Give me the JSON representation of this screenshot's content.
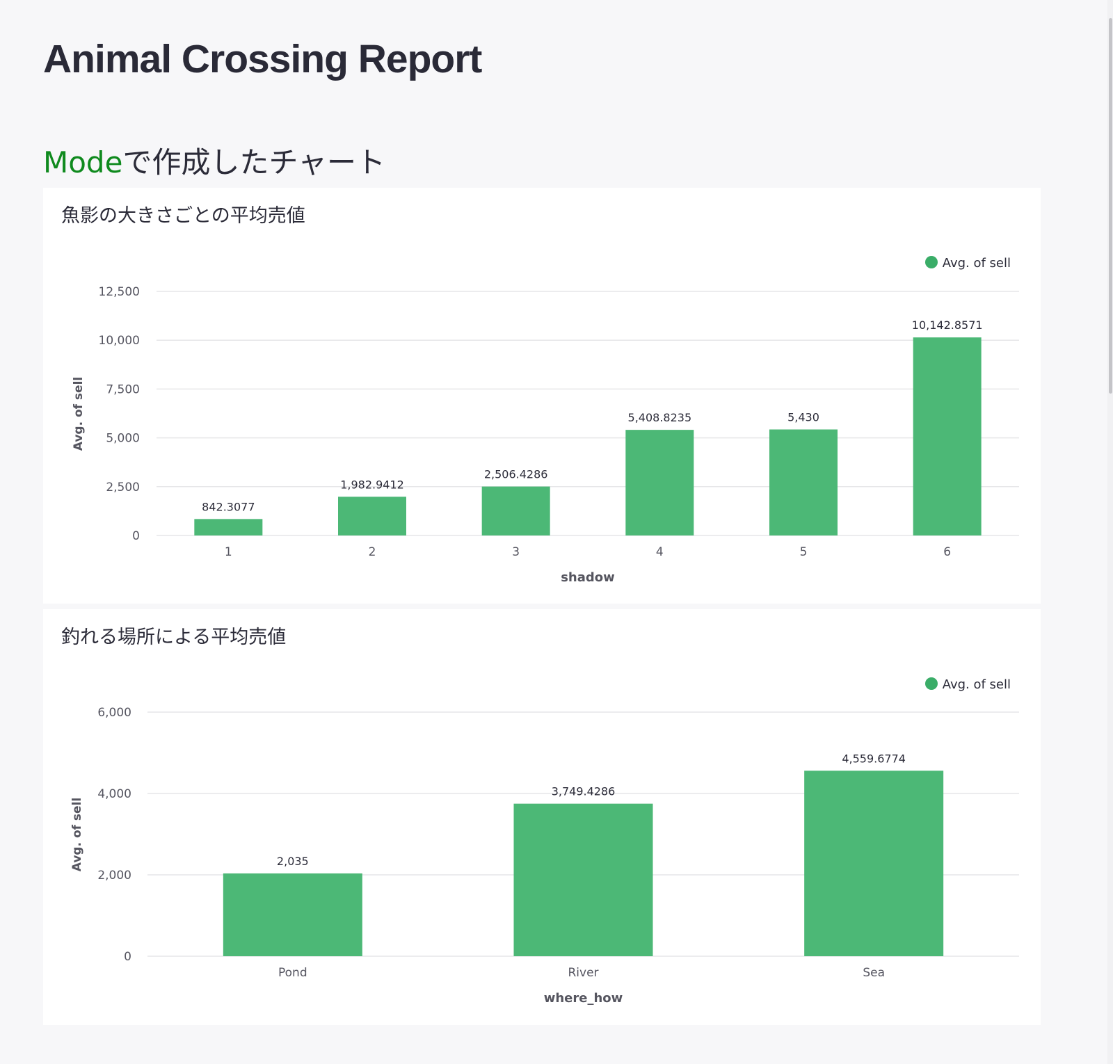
{
  "report": {
    "title": "Animal Crossing Report"
  },
  "section": {
    "heading_accent": "Mode",
    "heading_rest": "で作成したチャート"
  },
  "colors": {
    "bar": "#4cb876",
    "legend_dot": "#3aad68",
    "accent": "#0f8a1e"
  },
  "charts": [
    {
      "title": "魚影の大きさごとの平均売値"
    },
    {
      "title": "釣れる場所による平均売値"
    }
  ],
  "chart_data": [
    {
      "type": "bar",
      "title": "魚影の大きさごとの平均売値",
      "xlabel": "shadow",
      "ylabel": "Avg. of sell",
      "categories": [
        "1",
        "2",
        "3",
        "4",
        "5",
        "6"
      ],
      "series": [
        {
          "name": "Avg. of sell",
          "values": [
            842.3077,
            1982.9412,
            2506.4286,
            5408.8235,
            5430,
            10142.8571
          ],
          "labels": [
            "842.3077",
            "1,982.9412",
            "2,506.4286",
            "5,408.8235",
            "5,430",
            "10,142.8571"
          ]
        }
      ],
      "ylim": [
        0,
        12500
      ],
      "yticks": [
        0,
        2500,
        5000,
        7500,
        10000,
        12500
      ],
      "ytick_labels": [
        "0",
        "2,500",
        "5,000",
        "7,500",
        "10,000",
        "12,500"
      ],
      "grid": true,
      "legend": "top-right"
    },
    {
      "type": "bar",
      "title": "釣れる場所による平均売値",
      "xlabel": "where_how",
      "ylabel": "Avg. of sell",
      "categories": [
        "Pond",
        "River",
        "Sea"
      ],
      "series": [
        {
          "name": "Avg. of sell",
          "values": [
            2035,
            3749.4286,
            4559.6774
          ],
          "labels": [
            "2,035",
            "3,749.4286",
            "4,559.6774"
          ]
        }
      ],
      "ylim": [
        0,
        6000
      ],
      "yticks": [
        0,
        2000,
        4000,
        6000
      ],
      "ytick_labels": [
        "0",
        "2,000",
        "4,000",
        "6,000"
      ],
      "grid": true,
      "legend": "top-right"
    }
  ]
}
